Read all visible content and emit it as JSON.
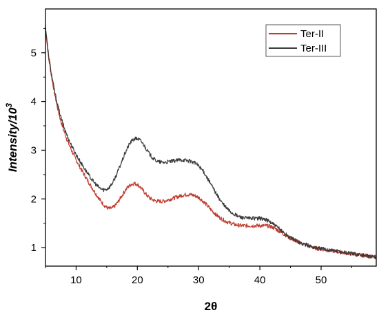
{
  "chart_data": {
    "type": "line",
    "title": "",
    "xlabel": "2θ",
    "ylabel_main": "Intensity/10",
    "ylabel_exponent": "3",
    "xlim": [
      5,
      59
    ],
    "ylim": [
      0.62,
      5.9
    ],
    "xticks": [
      10,
      20,
      30,
      40,
      50
    ],
    "yticks": [
      1,
      2,
      3,
      4,
      5
    ],
    "grid": false,
    "legend_position": "top-right",
    "series": [
      {
        "name": "Ter-II",
        "color": "#c0392b",
        "x": [
          5,
          5.5,
          6,
          6.5,
          7,
          7.5,
          8,
          8.5,
          9,
          9.5,
          10,
          10.5,
          11,
          11.5,
          12,
          12.5,
          13,
          13.5,
          14,
          14.5,
          15,
          15.5,
          16,
          16.5,
          17,
          17.5,
          18,
          18.5,
          19,
          19.5,
          20,
          20.5,
          21,
          21.5,
          22,
          22.5,
          23,
          23.5,
          24,
          24.5,
          25,
          25.5,
          26,
          26.5,
          27,
          27.5,
          28,
          28.5,
          29,
          29.5,
          30,
          30.5,
          31,
          31.5,
          32,
          32.5,
          33,
          33.5,
          34,
          34.5,
          35,
          35.5,
          36,
          36.5,
          37,
          37.5,
          38,
          38.5,
          39,
          39.5,
          40,
          40.5,
          41,
          41.5,
          42,
          42.5,
          43,
          43.5,
          44,
          44.5,
          45,
          45.5,
          46,
          46.5,
          47,
          47.5,
          48,
          48.5,
          49,
          49.5,
          50,
          50.5,
          51,
          51.5,
          52,
          52.5,
          53,
          53.5,
          54,
          54.5,
          55,
          55.5,
          56,
          56.5,
          57,
          57.5,
          58,
          58.5,
          59
        ],
        "y": [
          5.5,
          4.9,
          4.5,
          4.15,
          3.85,
          3.6,
          3.4,
          3.22,
          3.07,
          2.93,
          2.8,
          2.68,
          2.57,
          2.46,
          2.35,
          2.25,
          2.15,
          2.05,
          1.96,
          1.88,
          1.82,
          1.8,
          1.82,
          1.88,
          1.97,
          2.07,
          2.17,
          2.25,
          2.3,
          2.32,
          2.3,
          2.24,
          2.16,
          2.08,
          2.02,
          1.98,
          1.96,
          1.95,
          1.95,
          1.96,
          1.98,
          2.0,
          2.02,
          2.04,
          2.06,
          2.08,
          2.09,
          2.09,
          2.08,
          2.06,
          2.03,
          1.98,
          1.92,
          1.85,
          1.78,
          1.72,
          1.66,
          1.61,
          1.57,
          1.54,
          1.51,
          1.49,
          1.47,
          1.46,
          1.45,
          1.45,
          1.45,
          1.45,
          1.45,
          1.45,
          1.45,
          1.45,
          1.45,
          1.44,
          1.42,
          1.39,
          1.35,
          1.31,
          1.27,
          1.23,
          1.19,
          1.16,
          1.13,
          1.1,
          1.07,
          1.05,
          1.03,
          1.01,
          0.99,
          0.98,
          0.97,
          0.96,
          0.95,
          0.94,
          0.93,
          0.92,
          0.91,
          0.9,
          0.89,
          0.88,
          0.87,
          0.86,
          0.85,
          0.84,
          0.84,
          0.83,
          0.82,
          0.81,
          0.8
        ]
      },
      {
        "name": "Ter-III",
        "color": "#3a3a3a",
        "x": [
          5,
          5.5,
          6,
          6.5,
          7,
          7.5,
          8,
          8.5,
          9,
          9.5,
          10,
          10.5,
          11,
          11.5,
          12,
          12.5,
          13,
          13.5,
          14,
          14.5,
          15,
          15.5,
          16,
          16.5,
          17,
          17.5,
          18,
          18.5,
          19,
          19.5,
          20,
          20.5,
          21,
          21.5,
          22,
          22.5,
          23,
          23.5,
          24,
          24.5,
          25,
          25.5,
          26,
          26.5,
          27,
          27.5,
          28,
          28.5,
          29,
          29.5,
          30,
          30.5,
          31,
          31.5,
          32,
          32.5,
          33,
          33.5,
          34,
          34.5,
          35,
          35.5,
          36,
          36.5,
          37,
          37.5,
          38,
          38.5,
          39,
          39.5,
          40,
          40.5,
          41,
          41.5,
          42,
          42.5,
          43,
          43.5,
          44,
          44.5,
          45,
          45.5,
          46,
          46.5,
          47,
          47.5,
          48,
          48.5,
          49,
          49.5,
          50,
          50.5,
          51,
          51.5,
          52,
          52.5,
          53,
          53.5,
          54,
          54.5,
          55,
          55.5,
          56,
          56.5,
          57,
          57.5,
          58,
          58.5,
          59
        ],
        "y": [
          5.55,
          4.95,
          4.55,
          4.2,
          3.92,
          3.68,
          3.48,
          3.31,
          3.16,
          3.03,
          2.91,
          2.8,
          2.7,
          2.6,
          2.5,
          2.41,
          2.33,
          2.26,
          2.21,
          2.19,
          2.2,
          2.25,
          2.34,
          2.47,
          2.62,
          2.78,
          2.94,
          3.08,
          3.18,
          3.23,
          3.24,
          3.2,
          3.12,
          3.02,
          2.92,
          2.84,
          2.79,
          2.76,
          2.75,
          2.75,
          2.76,
          2.77,
          2.78,
          2.79,
          2.8,
          2.8,
          2.79,
          2.78,
          2.76,
          2.73,
          2.68,
          2.61,
          2.52,
          2.41,
          2.3,
          2.19,
          2.08,
          1.98,
          1.89,
          1.82,
          1.76,
          1.71,
          1.67,
          1.64,
          1.62,
          1.61,
          1.6,
          1.6,
          1.6,
          1.6,
          1.6,
          1.59,
          1.57,
          1.54,
          1.5,
          1.45,
          1.4,
          1.35,
          1.3,
          1.25,
          1.2,
          1.17,
          1.14,
          1.11,
          1.08,
          1.06,
          1.04,
          1.02,
          1.0,
          0.99,
          0.98,
          0.97,
          0.96,
          0.95,
          0.94,
          0.93,
          0.92,
          0.91,
          0.9,
          0.89,
          0.88,
          0.87,
          0.86,
          0.85,
          0.84,
          0.83,
          0.82,
          0.81,
          0.8
        ]
      }
    ]
  }
}
